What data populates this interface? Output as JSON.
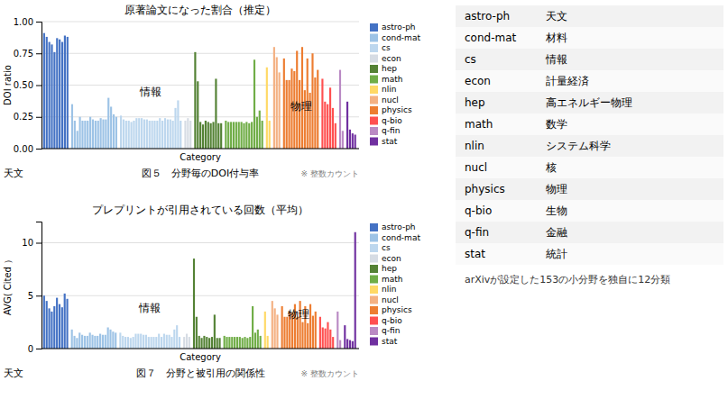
{
  "chart_data": [
    {
      "type": "bar",
      "title": "原著論文になった割合（推定）",
      "xlabel": "Category",
      "ylabel": "DOI ratio",
      "caption": "図５　分野毎のDOI付与率",
      "note": "※ 整数カウント",
      "annotations": [
        {
          "text": "情報",
          "x": "cs",
          "y": 0.44
        },
        {
          "text": "物理",
          "x": "physics",
          "y": 0.33
        },
        {
          "text": "天文"
        }
      ],
      "series": [
        {
          "name": "astro-ph",
          "color": "#4472C4",
          "values": [
            0.91,
            0.88,
            0.84,
            0.82,
            0.76,
            0.87,
            0.86,
            0.84,
            0.89,
            0.88
          ]
        },
        {
          "name": "cond-mat",
          "color": "#9DC3E6",
          "values": [
            0.35,
            0.22,
            0.14,
            0.25,
            0.22,
            0.22,
            0.22,
            0.25,
            0.23,
            0.22,
            0.22,
            0.24,
            0.23,
            0.23,
            0.4,
            0.33,
            0.27,
            0.25
          ]
        },
        {
          "name": "cs",
          "color": "#BDD7EE",
          "values": [
            0.26,
            0.23,
            0.22,
            0.22,
            0.21,
            0.22,
            0.24,
            0.24,
            0.24,
            0.23,
            0.23,
            0.22,
            0.22,
            0.22,
            0.22,
            0.24,
            0.22,
            0.24,
            0.23,
            0.23,
            0.22,
            0.32,
            0.38,
            0.22
          ]
        },
        {
          "name": "econ",
          "color": "#D6DCE4",
          "values": [
            0.22,
            0.24,
            0.22
          ]
        },
        {
          "name": "hep",
          "color": "#548235",
          "values": [
            0.76,
            0.53,
            0.21,
            0.19,
            0.22,
            0.21,
            0.2,
            0.21,
            0.55,
            0.2,
            0.2
          ]
        },
        {
          "name": "math",
          "color": "#70AD47",
          "values": [
            0.22,
            0.21,
            0.21,
            0.21,
            0.21,
            0.21,
            0.21,
            0.2,
            0.21,
            0.2,
            0.21,
            0.7,
            0.25,
            0.3,
            0.22
          ]
        },
        {
          "name": "nlin",
          "color": "#FFD966",
          "values": [
            0.64,
            0.22
          ]
        },
        {
          "name": "nucl",
          "color": "#F4B183",
          "values": [
            0.8,
            0.72,
            0.6
          ]
        },
        {
          "name": "physics",
          "color": "#ED7D31",
          "values": [
            0.71,
            0.54,
            0.54,
            0.63,
            0.61,
            0.77,
            0.54,
            0.8,
            0.46,
            0.71,
            0.44,
            0.75,
            0.56,
            0.62
          ]
        },
        {
          "name": "q-bio",
          "color": "#FF5050",
          "values": [
            0.55,
            0.37,
            0.35,
            0.48,
            0.32,
            0.2
          ]
        },
        {
          "name": "q-fin",
          "color": "#BA8AC4",
          "values": [
            0.62,
            0.14
          ]
        },
        {
          "name": "stat",
          "color": "#7030A0",
          "values": [
            0.37,
            0.15,
            0.12,
            0.11
          ]
        }
      ],
      "ylim": [
        0,
        1.0
      ],
      "yticks": [
        {
          "value": 0,
          "label": "0.00"
        },
        {
          "value": 0.25,
          "label": "0.25"
        },
        {
          "value": 0.5,
          "label": "0.50"
        },
        {
          "value": 0.75,
          "label": "0.75"
        },
        {
          "value": 1.0,
          "label": "1.00"
        }
      ],
      "grid": true,
      "legend": "right",
      "tick_labels": "y"
    },
    {
      "type": "bar",
      "title": "プレプリントが引用されている回数（平均）",
      "xlabel": "Category",
      "ylabel": "AVG( Cited ）",
      "caption": "図７　分野と被引用の関係性",
      "note": "※ 整数カウント",
      "annotations": [
        {
          "text": "情報",
          "x": "cs",
          "y": 3.8
        },
        {
          "text": "物理",
          "x": "physics",
          "y": 3.2
        },
        {
          "text": "天文"
        }
      ],
      "series": [
        {
          "name": "astro-ph",
          "color": "#4472C4",
          "values": [
            5.0,
            4.5,
            3.8,
            3.5,
            4.0,
            4.8,
            4.2,
            3.9,
            5.2,
            4.7
          ]
        },
        {
          "name": "cond-mat",
          "color": "#9DC3E6",
          "values": [
            1.8,
            1.2,
            1.0,
            1.5,
            1.3,
            1.2,
            1.2,
            1.5,
            1.3,
            1.2,
            1.2,
            1.4,
            1.3,
            1.3,
            2.0,
            1.8,
            1.6,
            1.5
          ]
        },
        {
          "name": "cs",
          "color": "#BDD7EE",
          "values": [
            1.5,
            1.2,
            1.1,
            1.1,
            1.0,
            1.1,
            1.4,
            1.4,
            1.4,
            1.3,
            1.3,
            1.1,
            1.1,
            1.1,
            1.1,
            1.4,
            1.1,
            1.4,
            1.3,
            1.3,
            1.1,
            1.8,
            2.2,
            1.1
          ]
        },
        {
          "name": "econ",
          "color": "#D6DCE4",
          "values": [
            1.1,
            1.4,
            1.1
          ]
        },
        {
          "name": "hep",
          "color": "#548235",
          "values": [
            8.5,
            3.0,
            1.2,
            1.0,
            1.2,
            1.1,
            1.0,
            1.1,
            3.2,
            1.0,
            1.0
          ]
        },
        {
          "name": "math",
          "color": "#70AD47",
          "values": [
            1.2,
            1.1,
            1.1,
            1.1,
            1.1,
            1.1,
            1.1,
            1.0,
            1.1,
            1.0,
            1.1,
            4.0,
            1.5,
            1.8,
            1.2
          ]
        },
        {
          "name": "nlin",
          "color": "#FFD966",
          "values": [
            3.5,
            1.2
          ]
        },
        {
          "name": "nucl",
          "color": "#F4B183",
          "values": [
            4.5,
            3.8,
            3.2
          ]
        },
        {
          "name": "physics",
          "color": "#ED7D31",
          "values": [
            4.0,
            3.0,
            3.0,
            3.5,
            3.4,
            4.2,
            3.0,
            4.5,
            2.5,
            4.0,
            2.4,
            4.2,
            3.1,
            3.5
          ]
        },
        {
          "name": "q-bio",
          "color": "#FF5050",
          "values": [
            3.0,
            2.0,
            1.9,
            2.5,
            1.8,
            1.1
          ]
        },
        {
          "name": "q-fin",
          "color": "#BA8AC4",
          "values": [
            3.5,
            0.8
          ]
        },
        {
          "name": "stat",
          "color": "#7030A0",
          "values": [
            2.2,
            0.9,
            0.8,
            0.7,
            11.0
          ]
        }
      ],
      "ylim": [
        0,
        12
      ],
      "yticks": [
        0,
        5,
        10
      ],
      "grid": true,
      "legend": "right",
      "tick_labels": "y"
    }
  ],
  "table": {
    "rows": [
      [
        "astro-ph",
        "天文"
      ],
      [
        "cond-mat",
        "材料"
      ],
      [
        "cs",
        "情報"
      ],
      [
        "econ",
        "計量経済"
      ],
      [
        "hep",
        "高エネルギー物理"
      ],
      [
        "math",
        "数学"
      ],
      [
        "nlin",
        "システム科学"
      ],
      [
        "nucl",
        "核"
      ],
      [
        "physics",
        "物理"
      ],
      [
        "q-bio",
        "生物"
      ],
      [
        "q-fin",
        "金融"
      ],
      [
        "stat",
        "統計"
      ]
    ],
    "note": "arXivが設定した153の小分野を独自に12分類"
  }
}
